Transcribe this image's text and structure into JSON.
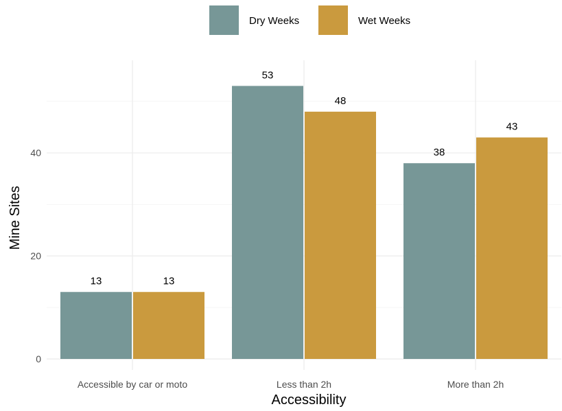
{
  "chart_data": {
    "type": "bar",
    "categories": [
      "Accessible by car or moto",
      "Less than 2h",
      "More than 2h"
    ],
    "series": [
      {
        "name": "Dry Weeks",
        "values": [
          13,
          53,
          38
        ],
        "color": "#779797"
      },
      {
        "name": "Wet Weeks",
        "values": [
          13,
          48,
          43
        ],
        "color": "#CA9A3E"
      }
    ],
    "xlabel": "Accessibility",
    "ylabel": "Mine Sites",
    "ylim": [
      0,
      57
    ],
    "yticks": [
      0,
      20,
      40
    ],
    "grid": true,
    "legend_position": "top"
  }
}
